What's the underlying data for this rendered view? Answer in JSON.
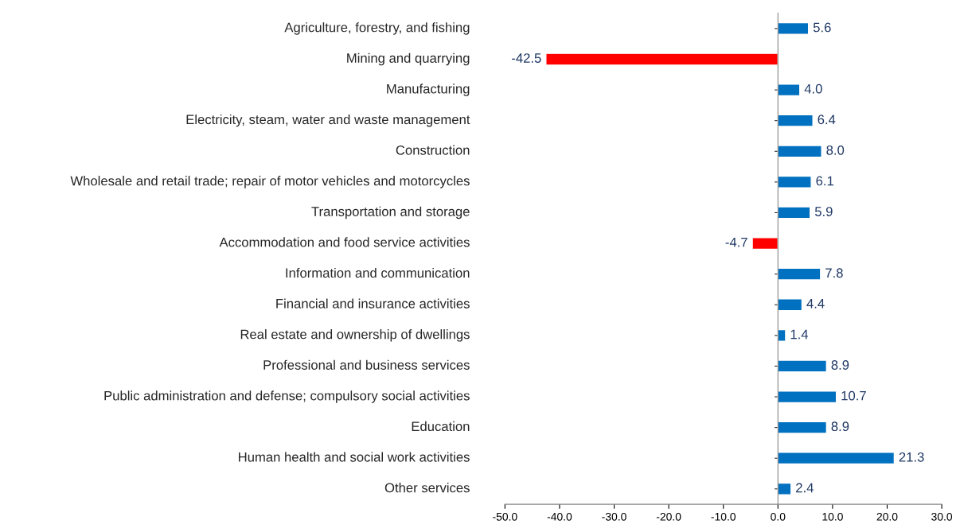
{
  "chart_data": {
    "type": "bar",
    "orientation": "horizontal",
    "categories": [
      "Agriculture, forestry, and fishing",
      "Mining and quarrying",
      "Manufacturing",
      "Electricity, steam, water and waste management",
      "Construction",
      "Wholesale and retail trade; repair of motor vehicles and motorcycles",
      "Transportation and storage",
      "Accommodation and food service activities",
      "Information and communication",
      "Financial and insurance activities",
      "Real estate and ownership of dwellings",
      "Professional and business services",
      "Public administration and defense; compulsory social activities",
      "Education",
      "Human health and social work activities",
      "Other services"
    ],
    "values": [
      5.6,
      -42.5,
      4.0,
      6.4,
      8.0,
      6.1,
      5.9,
      -4.7,
      7.8,
      4.4,
      1.4,
      8.9,
      10.7,
      8.9,
      21.3,
      2.4
    ],
    "colors": [
      "#0070c0",
      "#ff0000",
      "#0070c0",
      "#0070c0",
      "#0070c0",
      "#0070c0",
      "#0070c0",
      "#ff0000",
      "#0070c0",
      "#0070c0",
      "#0070c0",
      "#0070c0",
      "#0070c0",
      "#0070c0",
      "#0070c0",
      "#0070c0"
    ],
    "value_labels": [
      "5.6",
      "-42.5",
      "4.0",
      "6.4",
      "8.0",
      "6.1",
      "5.9",
      "-4.7",
      "7.8",
      "4.4",
      "1.4",
      "8.9",
      "10.7",
      "8.9",
      "21.3",
      "2.4"
    ],
    "xlim": [
      -50,
      30
    ],
    "xticks": [
      {
        "value": -50,
        "label": "-50.0"
      },
      {
        "value": -40,
        "label": "-40.0"
      },
      {
        "value": -30,
        "label": "-30.0"
      },
      {
        "value": -20,
        "label": "-20.0"
      },
      {
        "value": -10,
        "label": "-10.0"
      },
      {
        "value": 0,
        "label": "0.0"
      },
      {
        "value": 10,
        "label": "10.0"
      },
      {
        "value": 20,
        "label": "20.0"
      },
      {
        "value": 30,
        "label": "30.0"
      }
    ],
    "tick_labels": true
  }
}
